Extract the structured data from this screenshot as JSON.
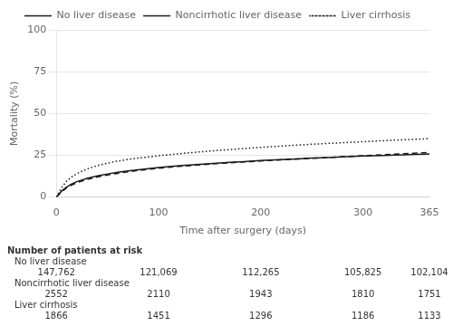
{
  "chart_data": {
    "type": "line",
    "xlabel": "Time after surgery (days)",
    "ylabel": "Mortality (%)",
    "xlim": [
      0,
      365
    ],
    "ylim": [
      0,
      100
    ],
    "xticks": [
      0,
      100,
      200,
      300,
      365
    ],
    "yticks": [
      0,
      25,
      50,
      75,
      100
    ],
    "grid": "y",
    "legend": "top",
    "x": [
      0,
      5,
      10,
      15,
      20,
      30,
      40,
      50,
      60,
      70,
      80,
      90,
      100,
      110,
      120,
      130,
      140,
      150,
      160,
      170,
      180,
      190,
      200,
      210,
      220,
      230,
      240,
      250,
      260,
      270,
      280,
      290,
      300,
      310,
      320,
      330,
      340,
      350,
      360,
      365
    ],
    "series": [
      {
        "name": "No liver disease",
        "color": "#1a1a1a",
        "line_style": "solid",
        "values": [
          0,
          3.5,
          6.0,
          7.8,
          9.2,
          11.2,
          12.7,
          13.8,
          14.8,
          15.6,
          16.3,
          17.0,
          17.6,
          18.2,
          18.7,
          19.2,
          19.6,
          20.0,
          20.4,
          20.8,
          21.1,
          21.5,
          21.8,
          22.1,
          22.4,
          22.7,
          23.0,
          23.3,
          23.5,
          23.8,
          24.0,
          24.3,
          24.5,
          24.7,
          24.9,
          25.1,
          25.3,
          25.5,
          25.7,
          25.8
        ]
      },
      {
        "name": "Noncirrhotic liver disease",
        "color": "#1a1a1a",
        "line_style": "dashed",
        "values": [
          0,
          3.0,
          5.5,
          7.2,
          8.6,
          10.5,
          12.0,
          13.2,
          14.2,
          15.1,
          15.9,
          16.6,
          17.2,
          17.8,
          18.3,
          18.8,
          19.3,
          19.7,
          20.1,
          20.5,
          20.9,
          21.2,
          21.6,
          22.0,
          22.3,
          22.6,
          22.9,
          23.2,
          23.5,
          23.8,
          24.1,
          24.4,
          24.7,
          25.0,
          25.3,
          25.6,
          25.9,
          26.2,
          26.5,
          26.7
        ]
      },
      {
        "name": "Liver cirrhosis",
        "color": "#1a1a1a",
        "line_style": "dotted",
        "values": [
          0,
          5.5,
          9.5,
          12.0,
          14.0,
          16.8,
          18.8,
          20.3,
          21.5,
          22.5,
          23.3,
          24.0,
          24.7,
          25.3,
          25.9,
          26.5,
          27.0,
          27.5,
          28.0,
          28.4,
          28.9,
          29.3,
          29.7,
          30.1,
          30.5,
          30.9,
          31.2,
          31.6,
          31.9,
          32.2,
          32.5,
          32.8,
          33.1,
          33.4,
          33.7,
          34.0,
          34.3,
          34.5,
          34.8,
          35.0
        ]
      }
    ],
    "risk_table": {
      "title": "Number of patients at risk",
      "x": [
        0,
        100,
        200,
        300,
        365
      ],
      "rows": [
        {
          "name": "No liver disease",
          "values": [
            147762,
            121069,
            112265,
            105825,
            102104
          ],
          "value_labels": [
            "147,762",
            "121,069",
            "112,265",
            "105,825",
            "102,104"
          ]
        },
        {
          "name": "Noncirrhotic liver disease",
          "values": [
            2552,
            2110,
            1943,
            1810,
            1751
          ],
          "value_labels": [
            "2552",
            "2110",
            "1943",
            "1810",
            "1751"
          ]
        },
        {
          "name": "Liver cirrhosis",
          "values": [
            1866,
            1451,
            1296,
            1186,
            1133
          ],
          "value_labels": [
            "1866",
            "1451",
            "1296",
            "1186",
            "1133"
          ]
        }
      ]
    }
  }
}
